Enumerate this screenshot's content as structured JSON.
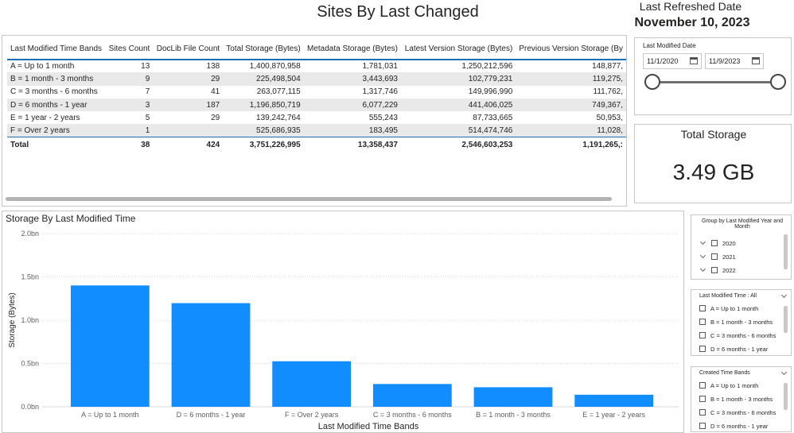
{
  "header": {
    "title": "Sites By Last Changed",
    "refresh_label": "Last Refreshed Date",
    "refresh_date": "November 10, 2023"
  },
  "table": {
    "columns": [
      "Last Modified Time Bands",
      "Sites Count",
      "DocLib File Count",
      "Total Storage (Bytes)",
      "Metadata Storage (Bytes)",
      "Latest Version Storage (Bytes)",
      "Previous Version Storage (By"
    ],
    "rows": [
      [
        "A = Up to 1 month",
        "13",
        "138",
        "1,400,870,958",
        "1,781,031",
        "1,250,212,596",
        "148,877,"
      ],
      [
        "B = 1 month - 3 months",
        "9",
        "29",
        "225,498,504",
        "3,443,693",
        "102,779,231",
        "119,275,"
      ],
      [
        "C = 3 months - 6 months",
        "7",
        "41",
        "263,077,115",
        "1,317,746",
        "149,996,990",
        "111,762,"
      ],
      [
        "D = 6 months - 1 year",
        "3",
        "187",
        "1,196,850,719",
        "6,077,229",
        "441,406,025",
        "749,367,"
      ],
      [
        "E = 1 year - 2 years",
        "5",
        "29",
        "139,242,764",
        "555,243",
        "87,733,665",
        "50,953,"
      ],
      [
        "F = Over 2 years",
        "1",
        "",
        "525,686,935",
        "183,495",
        "514,474,746",
        "11,028,"
      ]
    ],
    "total": [
      "Total",
      "38",
      "424",
      "3,751,226,995",
      "13,358,437",
      "2,546,603,253",
      "1,191,265,:"
    ]
  },
  "date_slicer": {
    "title": "Last Modified Date",
    "start": "11/1/2020",
    "end": "11/9/2023"
  },
  "card": {
    "label": "Total Storage",
    "value": "3.49 GB"
  },
  "chart": {
    "title": "Storage By Last Modified Time",
    "bar_color": "#118dff"
  },
  "chart_data": {
    "type": "bar",
    "title": "Storage By Last Modified Time",
    "xlabel": "Last Modified Time Bands",
    "ylabel": "Storage (Bytes)",
    "categories": [
      "A = Up to 1 month",
      "D = 6 months - 1 year",
      "F = Over 2 years",
      "C = 3 months - 6 months",
      "B = 1 month - 3 months",
      "E = 1 year - 2 years"
    ],
    "values": [
      1400870958,
      1196850719,
      525686935,
      263077115,
      225498504,
      139242764
    ],
    "yticks": [
      0,
      500000000,
      1000000000,
      1500000000,
      2000000000
    ],
    "ytick_labels": [
      "0.0bn",
      "0.5bn",
      "1.0bn",
      "1.5bn",
      "2.0bn"
    ],
    "ylim": [
      0,
      2000000000
    ]
  },
  "slicer_year": {
    "title": "Group by Last Modified Year and Month",
    "items": [
      "2020",
      "2021",
      "2022"
    ]
  },
  "slicer_modified": {
    "title": "Last Modified Time : All",
    "items": [
      "A = Up to 1 month",
      "B = 1 month - 3 months",
      "C = 3 months - 6 months",
      "D = 6 months - 1 year"
    ]
  },
  "slicer_created": {
    "title": "Created Time Bands",
    "items": [
      "A = Up to 1 month",
      "B = 1 month - 3 months",
      "C = 3 months - 6 months",
      "D = 6 months - 1 year"
    ]
  }
}
